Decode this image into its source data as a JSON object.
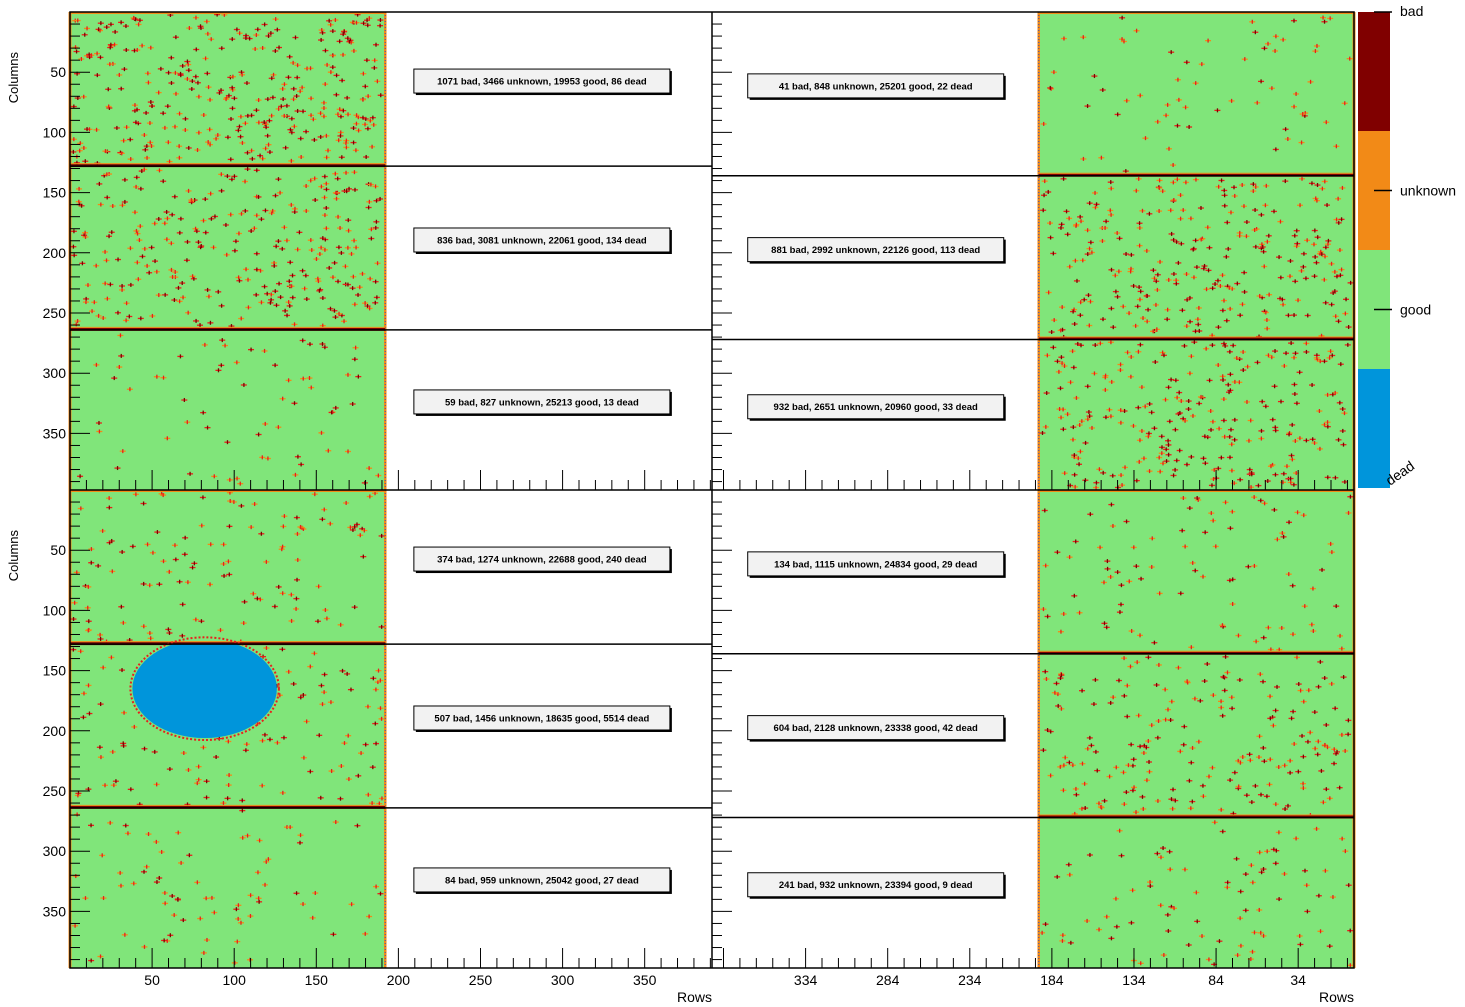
{
  "chart_data": {
    "type": "heatmap",
    "x_axis_title": "Rows",
    "y_axis_title": "Columns",
    "color_scale": [
      {
        "label": "bad",
        "color": "#800000"
      },
      {
        "label": "unknown",
        "color": "#f28a17"
      },
      {
        "label": "good",
        "color": "#80e57a"
      },
      {
        "label": "dead",
        "color": "#0095db"
      }
    ],
    "colors": {
      "bad": "#800000",
      "unknown": "#f28a17",
      "good": "#80e57a",
      "dead": "#0095db",
      "mark": "#e8201c"
    },
    "y_ticks": [
      50,
      100,
      150,
      200,
      250,
      300,
      350
    ],
    "y_range": [
      0,
      397
    ],
    "left_x_ticks": [
      50,
      100,
      150,
      200,
      250,
      300,
      350
    ],
    "left_x_range": [
      0,
      391
    ],
    "right_x_ticks": [
      334,
      284,
      234,
      184,
      134,
      84,
      34
    ],
    "right_x_range": [
      391,
      0
    ],
    "active_x_range": [
      0,
      192
    ],
    "module_boundaries_left": [
      128,
      264
    ],
    "module_boundaries_right": [
      136,
      272
    ],
    "panels": [
      {
        "position": "top-left",
        "summaries": [
          "1071 bad, 3466 unknown, 19953 good, 86 dead",
          "836 bad, 3081 unknown, 22061 good, 134 dead",
          "59 bad, 827 unknown, 25213 good, 13 dead"
        ]
      },
      {
        "position": "top-right",
        "summaries": [
          "41 bad, 848 unknown, 25201 good, 22 dead",
          "881 bad, 2992 unknown, 22126 good, 113 dead",
          "932 bad, 2651 unknown, 20960 good, 33 dead"
        ]
      },
      {
        "position": "bottom-left",
        "summaries": [
          "374 bad, 1274 unknown, 22688 good, 240 dead",
          "507 bad, 1456 unknown, 18635 good, 5514 dead",
          "84 bad, 959 unknown, 25042 good, 27 dead"
        ]
      },
      {
        "position": "bottom-right",
        "summaries": [
          "134 bad, 1115 unknown, 24834 good, 29 dead",
          "604 bad, 2128 unknown, 23338 good, 42 dead",
          "241 bad, 932 unknown, 23394 good, 9 dead"
        ]
      }
    ],
    "dead_region": {
      "panel": "bottom-left",
      "center_row": 82,
      "center_column": 165,
      "radius_rows": 44,
      "radius_columns": 41
    }
  }
}
